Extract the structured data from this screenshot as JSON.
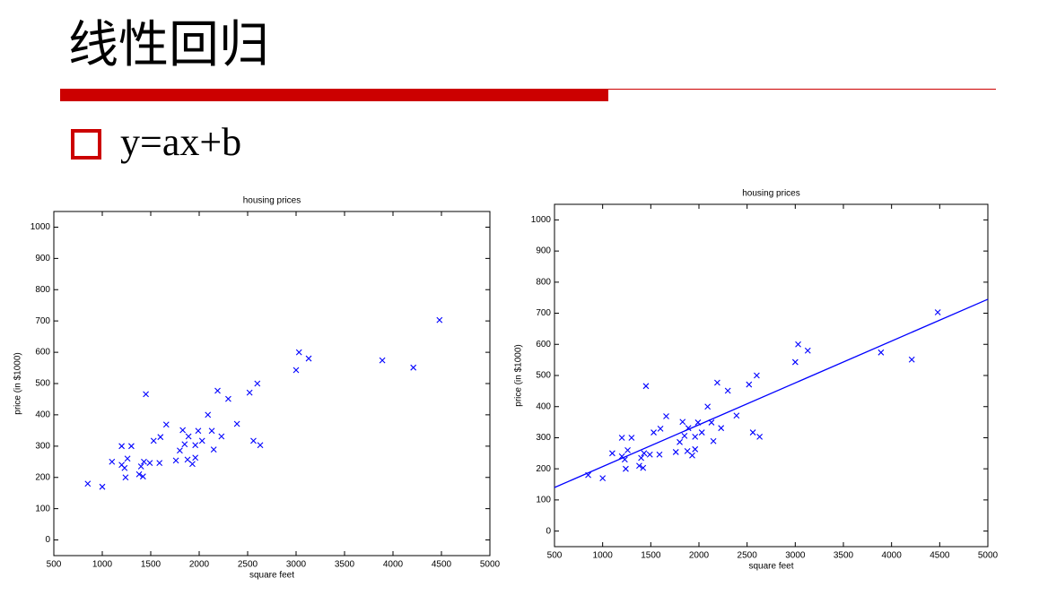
{
  "slide": {
    "title": "线性回归",
    "bullet": "y=ax+b"
  },
  "chart_data": [
    {
      "type": "scatter",
      "title": "housing prices",
      "x_label": "square feet",
      "y_label": "price (in $1000)",
      "x": [
        850,
        1000,
        1100,
        1200,
        1200,
        1230,
        1240,
        1260,
        1300,
        1380,
        1400,
        1430,
        1420,
        1450,
        1490,
        1530,
        1600,
        1590,
        1660,
        1760,
        1800,
        1830,
        1850,
        1890,
        1880,
        1930,
        1960,
        1960,
        1990,
        2030,
        2090,
        2130,
        2150,
        2190,
        2230,
        2300,
        2390,
        2520,
        2560,
        2600,
        2630,
        3000,
        3030,
        3130,
        3890,
        4210,
        4480
      ],
      "values": [
        180,
        170,
        250,
        300,
        240,
        230,
        200,
        260,
        300,
        210,
        235,
        250,
        203,
        466,
        246,
        317,
        329,
        246,
        369,
        254,
        286,
        351,
        306,
        331,
        257,
        243,
        263,
        303,
        349,
        317,
        400,
        349,
        289,
        477,
        331,
        451,
        371,
        471,
        317,
        500,
        303,
        543,
        600,
        580,
        574,
        551,
        703
      ],
      "color": "#0000ff",
      "xlim": [
        500,
        5000
      ],
      "ylim": [
        -50,
        1050
      ],
      "xticks": [
        500,
        1000,
        1500,
        2000,
        2500,
        3000,
        3500,
        4000,
        4500,
        5000
      ],
      "yticks": [
        0,
        100,
        200,
        300,
        400,
        500,
        600,
        700,
        800,
        900,
        1000
      ]
    },
    {
      "type": "scatter",
      "title": "housing prices",
      "x_label": "square feet",
      "y_label": "price (in $1000)",
      "x": [
        850,
        1000,
        1100,
        1200,
        1200,
        1230,
        1240,
        1260,
        1300,
        1380,
        1400,
        1430,
        1420,
        1450,
        1490,
        1530,
        1600,
        1590,
        1660,
        1760,
        1800,
        1830,
        1850,
        1890,
        1880,
        1930,
        1960,
        1960,
        1990,
        2030,
        2090,
        2130,
        2150,
        2190,
        2230,
        2300,
        2390,
        2520,
        2560,
        2600,
        2630,
        3000,
        3030,
        3130,
        3890,
        4210,
        4480
      ],
      "values": [
        180,
        170,
        250,
        300,
        240,
        230,
        200,
        260,
        300,
        210,
        235,
        250,
        203,
        466,
        246,
        317,
        329,
        246,
        369,
        254,
        286,
        351,
        306,
        331,
        257,
        243,
        263,
        303,
        349,
        317,
        400,
        349,
        289,
        477,
        331,
        451,
        371,
        471,
        317,
        500,
        303,
        543,
        600,
        580,
        574,
        551,
        703
      ],
      "color": "#0000ff",
      "fit": {
        "x": [
          500,
          5000
        ],
        "values": [
          140,
          745
        ]
      },
      "xlim": [
        500,
        5000
      ],
      "ylim": [
        -50,
        1050
      ],
      "xticks": [
        500,
        1000,
        1500,
        2000,
        2500,
        3000,
        3500,
        4000,
        4500,
        5000
      ],
      "yticks": [
        0,
        100,
        200,
        300,
        400,
        500,
        600,
        700,
        800,
        900,
        1000
      ]
    }
  ]
}
